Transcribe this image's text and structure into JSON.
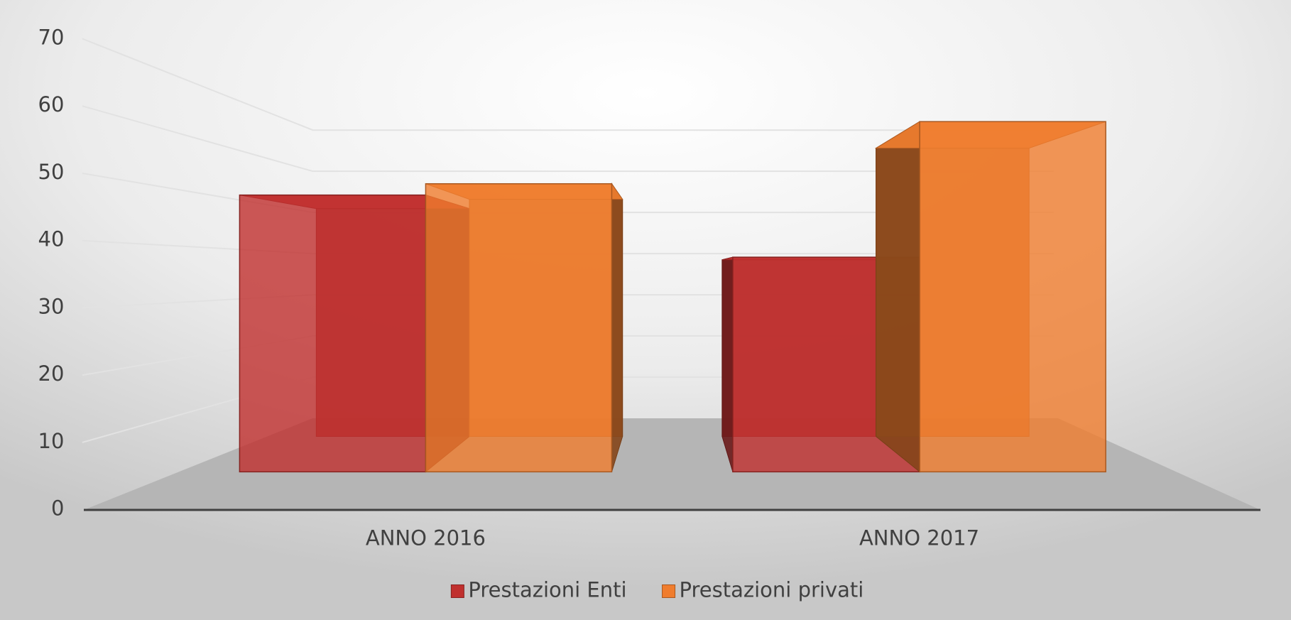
{
  "chart_data": {
    "type": "bar3d",
    "categories": [
      "ANNO 2016",
      "ANNO 2017"
    ],
    "series": [
      {
        "name": "Prestazioni Enti",
        "color": "#c0302e",
        "values": [
          49,
          38
        ]
      },
      {
        "name": "Prestazioni privati",
        "color": "#f07d2e",
        "values": [
          51,
          62
        ]
      }
    ],
    "ylim": [
      0,
      70
    ],
    "yticks": [
      0,
      10,
      20,
      30,
      40,
      50,
      60,
      70
    ],
    "grid": true,
    "legend": "bottom"
  }
}
